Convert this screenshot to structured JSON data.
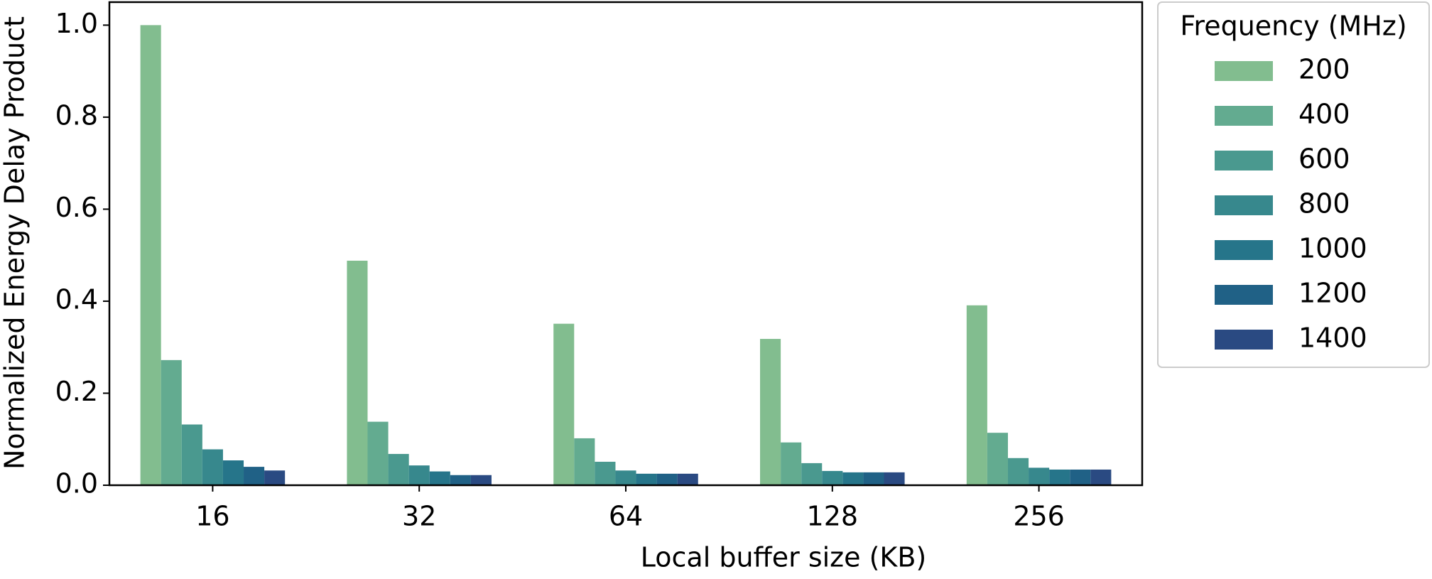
{
  "chart_data": {
    "type": "bar",
    "xlabel": "Local buffer size (KB)",
    "ylabel": "Normalized Energy Delay Product",
    "legend_title": "Frequency (MHz)",
    "categories": [
      "16",
      "32",
      "64",
      "128",
      "256"
    ],
    "ylim": [
      0,
      1.05
    ],
    "yticks": [
      0.0,
      0.2,
      0.4,
      0.6,
      0.8,
      1.0
    ],
    "series": [
      {
        "name": "200",
        "color": "#82bd8f",
        "values": [
          1.0,
          0.488,
          0.351,
          0.318,
          0.391
        ]
      },
      {
        "name": "400",
        "color": "#63ab90",
        "values": [
          0.272,
          0.138,
          0.102,
          0.093,
          0.114
        ]
      },
      {
        "name": "600",
        "color": "#4a998f",
        "values": [
          0.132,
          0.068,
          0.051,
          0.048,
          0.059
        ]
      },
      {
        "name": "800",
        "color": "#37888d",
        "values": [
          0.078,
          0.043,
          0.032,
          0.031,
          0.038
        ]
      },
      {
        "name": "1000",
        "color": "#26758a",
        "values": [
          0.054,
          0.03,
          0.025,
          0.028,
          0.034
        ]
      },
      {
        "name": "1200",
        "color": "#206186",
        "values": [
          0.04,
          0.022,
          0.025,
          0.028,
          0.034
        ]
      },
      {
        "name": "1400",
        "color": "#2a4a82",
        "values": [
          0.032,
          0.022,
          0.025,
          0.028,
          0.034
        ]
      }
    ]
  }
}
